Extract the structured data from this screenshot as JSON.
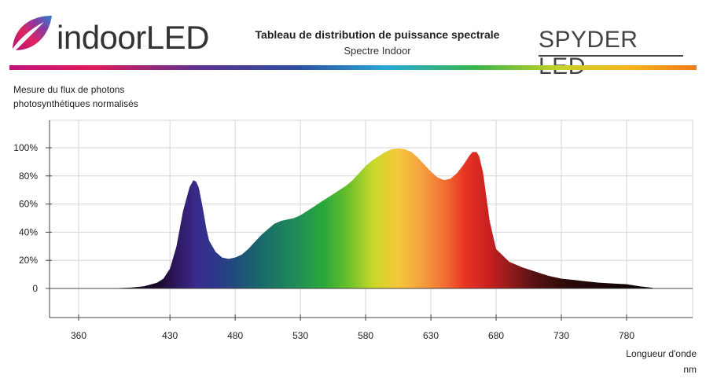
{
  "header": {
    "brand_left_indoor": "indoor",
    "brand_left_led": "LED",
    "title": "Tableau de distribution de puissance spectrale",
    "subtitle": "Spectre Indoor",
    "brand_right": "SPYDER LED"
  },
  "colors": {
    "grid": "#d6d6d6",
    "axis": "#444444",
    "text": "#222222"
  },
  "chart_data": {
    "type": "area",
    "title": "Tableau de distribution de puissance spectrale",
    "subtitle": "Spectre Indoor",
    "ylabel_lines": [
      "Mesure du flux de photons",
      "photosynthétiques normalisés"
    ],
    "xlabel": "Longueur d'onde",
    "xunit": "nm",
    "xlim": [
      360,
      810
    ],
    "ylim": [
      0,
      100
    ],
    "x_ticks": [
      360,
      430,
      480,
      530,
      580,
      630,
      680,
      730,
      780
    ],
    "y_ticks": [
      {
        "value": 0,
        "label": "0"
      },
      {
        "value": 20,
        "label": "20%"
      },
      {
        "value": 40,
        "label": "40%"
      },
      {
        "value": 60,
        "label": "60%"
      },
      {
        "value": 80,
        "label": "80%"
      },
      {
        "value": 100,
        "label": "100%"
      }
    ],
    "grid": true,
    "x": [
      380,
      390,
      400,
      410,
      420,
      425,
      430,
      435,
      440,
      445,
      448,
      450,
      452,
      455,
      458,
      460,
      465,
      470,
      475,
      480,
      485,
      490,
      495,
      500,
      505,
      510,
      515,
      520,
      525,
      530,
      535,
      540,
      545,
      550,
      555,
      560,
      565,
      570,
      575,
      580,
      585,
      590,
      595,
      600,
      605,
      610,
      615,
      620,
      625,
      630,
      635,
      640,
      645,
      650,
      655,
      660,
      662,
      665,
      667,
      670,
      675,
      680,
      690,
      700,
      710,
      720,
      730,
      740,
      750,
      760,
      770,
      780,
      790,
      800
    ],
    "y": [
      0,
      0.3,
      0.6,
      1.5,
      4,
      7,
      14,
      30,
      55,
      72,
      77,
      76,
      72,
      58,
      42,
      34,
      26,
      22,
      21,
      22,
      24,
      28,
      33,
      38,
      42,
      46,
      48,
      49,
      50,
      52,
      55,
      58,
      61,
      64,
      67,
      70,
      73,
      77,
      82,
      87,
      91,
      94,
      97,
      99,
      99.5,
      99,
      97,
      93,
      88,
      83,
      79,
      77,
      78,
      82,
      88,
      95,
      97,
      97,
      94,
      82,
      48,
      28,
      19,
      15,
      12,
      9,
      7,
      6,
      5,
      4,
      3.5,
      3,
      1.5,
      0.5
    ]
  }
}
